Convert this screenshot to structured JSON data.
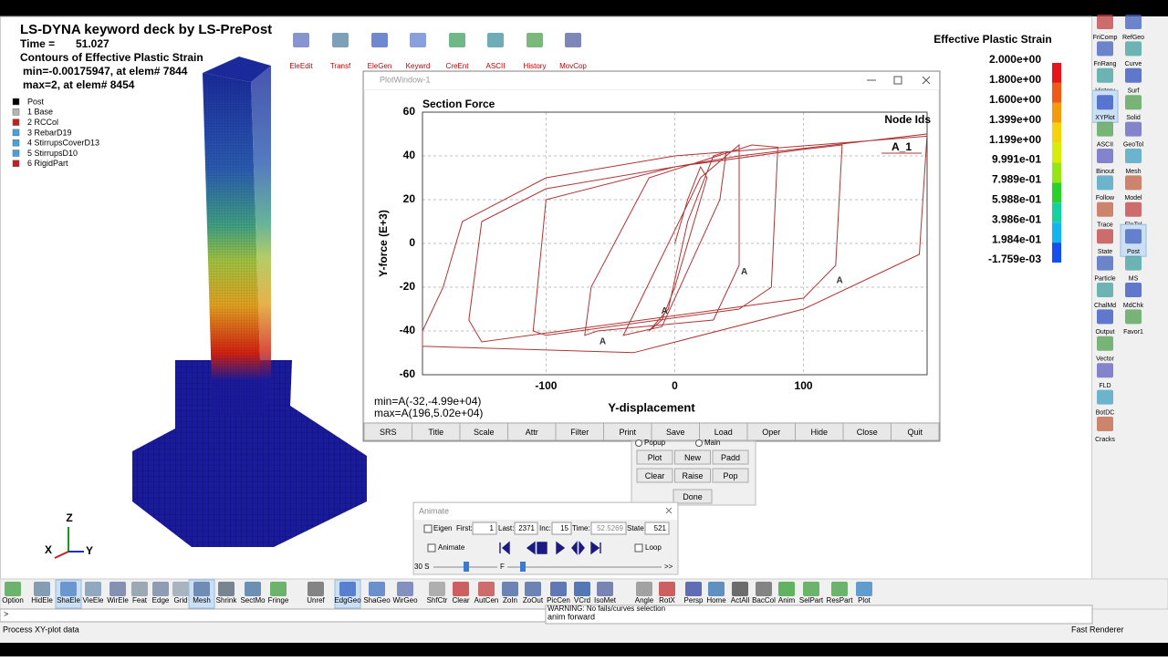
{
  "header": {
    "title": "LS-DYNA keyword deck by LS-PrePost",
    "time_label": "Time =",
    "time_value": "51.027",
    "contour": "Contours of Effective Plastic Strain",
    "min": "min=-0.00175947, at elem# 7844",
    "max": "max=2, at elem# 8454"
  },
  "parts": [
    {
      "label": "Post",
      "color": "#000000"
    },
    {
      "label": "1 Base",
      "color": "#b4b4b4"
    },
    {
      "label": "2 RCCol",
      "color": "#c02020"
    },
    {
      "label": "3 RebarD19",
      "color": "#4aa0d8"
    },
    {
      "label": "4 StirrupsCoverD13",
      "color": "#4aa0d8"
    },
    {
      "label": "5 StirrupsD10",
      "color": "#4aa0d8"
    },
    {
      "label": "6 RigidPart",
      "color": "#c02020"
    }
  ],
  "top_toolbar": [
    "EleEdit",
    "Transf",
    "EleGen",
    "Keywrd",
    "CreEnt",
    "ASCII",
    "History",
    "MovCop"
  ],
  "contour_legend": {
    "title": "Effective Plastic Strain",
    "labels": [
      "2.000e+00",
      "1.800e+00",
      "1.600e+00",
      "1.399e+00",
      "1.199e+00",
      "9.991e-01",
      "7.989e-01",
      "5.988e-01",
      "3.986e-01",
      "1.984e-01",
      "-1.759e-03"
    ],
    "colors": [
      "#e8141a",
      "#f05a14",
      "#f59a0a",
      "#f5d20a",
      "#d8ec0a",
      "#96e614",
      "#28d228",
      "#14d2a0",
      "#14b4f0",
      "#1450f0"
    ]
  },
  "right_toolbar": {
    "col1": [
      "FriComp",
      "FriRang",
      "History",
      "XYPlot",
      "ASCII",
      "Binout",
      "Follow",
      "Trace",
      "State",
      "Particle",
      "ChalMd",
      "Output",
      "Vector",
      "FLD",
      "BotDC",
      "Cracks"
    ],
    "col2": [
      "RefGeo",
      "Curve",
      "Surf",
      "Solid",
      "GeoTol",
      "Mesh",
      "Model",
      "EleTol",
      "Post",
      "MS",
      "MdChk",
      "Favor1"
    ]
  },
  "plot_window": {
    "window_title": "PlotWindow-1",
    "buttons": [
      "SRS",
      "Title",
      "Scale",
      "Attr",
      "Filter",
      "Print",
      "Save",
      "Load",
      "Oper",
      "Hide",
      "Close",
      "Quit"
    ]
  },
  "chart_data": {
    "type": "line",
    "title": "Section Force",
    "x_label": "Y-displacement",
    "y_label": "Y-force (E+3)",
    "legend_title": "Node Ids",
    "x": [
      0,
      10,
      20,
      25,
      0,
      -10,
      -20,
      -5,
      10,
      30,
      40,
      35,
      -10,
      -40,
      -30,
      20,
      50,
      50,
      30,
      -60,
      -70,
      -65,
      -20,
      60,
      80,
      75,
      50,
      -100,
      -110,
      -100,
      0,
      100,
      130,
      125,
      100,
      -150,
      -160,
      -150,
      -100,
      50,
      196,
      190,
      100,
      -32,
      -196,
      -196,
      -180,
      -165,
      -100,
      0,
      196
    ],
    "series": [
      {
        "name": "A_1",
        "color": "#b03434",
        "values": [
          0,
          20,
          35,
          30,
          -20,
          -35,
          -40,
          -30,
          10,
          40,
          42,
          20,
          -38,
          -42,
          -30,
          30,
          45,
          -10,
          -35,
          -40,
          -42,
          -20,
          30,
          45,
          44,
          -20,
          -30,
          -42,
          -40,
          20,
          35,
          43,
          45,
          -10,
          -25,
          -45,
          -35,
          10,
          25,
          40,
          50,
          -5,
          -30,
          -49.9,
          -47,
          -40,
          -20,
          10,
          30,
          40,
          49
        ]
      }
    ],
    "markers": {
      "label": "A",
      "x": [
        -56,
        -8,
        54,
        128
      ],
      "y": [
        -45,
        -31,
        -13,
        -17
      ]
    },
    "xlim": [
      -196,
      196
    ],
    "ylim": [
      -60,
      60
    ],
    "xticks": [
      -100,
      0,
      100
    ],
    "yticks": [
      -60,
      -40,
      -20,
      0,
      20,
      40,
      60
    ],
    "grid": true,
    "min_text": "min=A(-32,-4.99e+04)",
    "max_text": "max=A(196,5.02e+04)"
  },
  "xy_panel": {
    "popup": "Popup",
    "main": "Main",
    "buttons": [
      "Plot",
      "New",
      "Padd",
      "Clear",
      "Raise",
      "Pop"
    ],
    "done": "Done"
  },
  "animate": {
    "title": "Animate",
    "eigen": "Eigen",
    "first_label": "First:",
    "first": "1",
    "last_label": "Last:",
    "last": "2371",
    "inc_label": "Inc:",
    "inc": "15",
    "time_label": "Time:",
    "time": "52.5269",
    "state_label": "State:",
    "state": "521",
    "animate": "Animate",
    "loop": "Loop",
    "speed": "30 S",
    "slider": "F",
    "more": ">>"
  },
  "triad": {
    "z": "Z",
    "x": "X",
    "y": "Y"
  },
  "bottom_toolbar": [
    "Option",
    "HidEle",
    "ShaEle",
    "VieEle",
    "WirEle",
    "Feat",
    "Edge",
    "Grid",
    "Mesh",
    "Shrink",
    "SectMo",
    "Fringe",
    "Unref",
    "EdgGeo",
    "ShaGeo",
    "WirGeo",
    "ShfCtr",
    "Clear",
    "AutCen",
    "ZoIn",
    "ZoOut",
    "PicCen",
    "VCrd",
    "IsoMet",
    "Angle",
    "RotX",
    "Persp",
    "Home",
    "ActAll",
    "BacCol",
    "Anim",
    "SelPart",
    "ResPart",
    "Plot"
  ],
  "status": {
    "prompt": ">",
    "process": "Process XY-plot data",
    "message1": "WARNING: No fails/curves selection",
    "message2": "anim forward",
    "renderer": "Fast Renderer"
  }
}
